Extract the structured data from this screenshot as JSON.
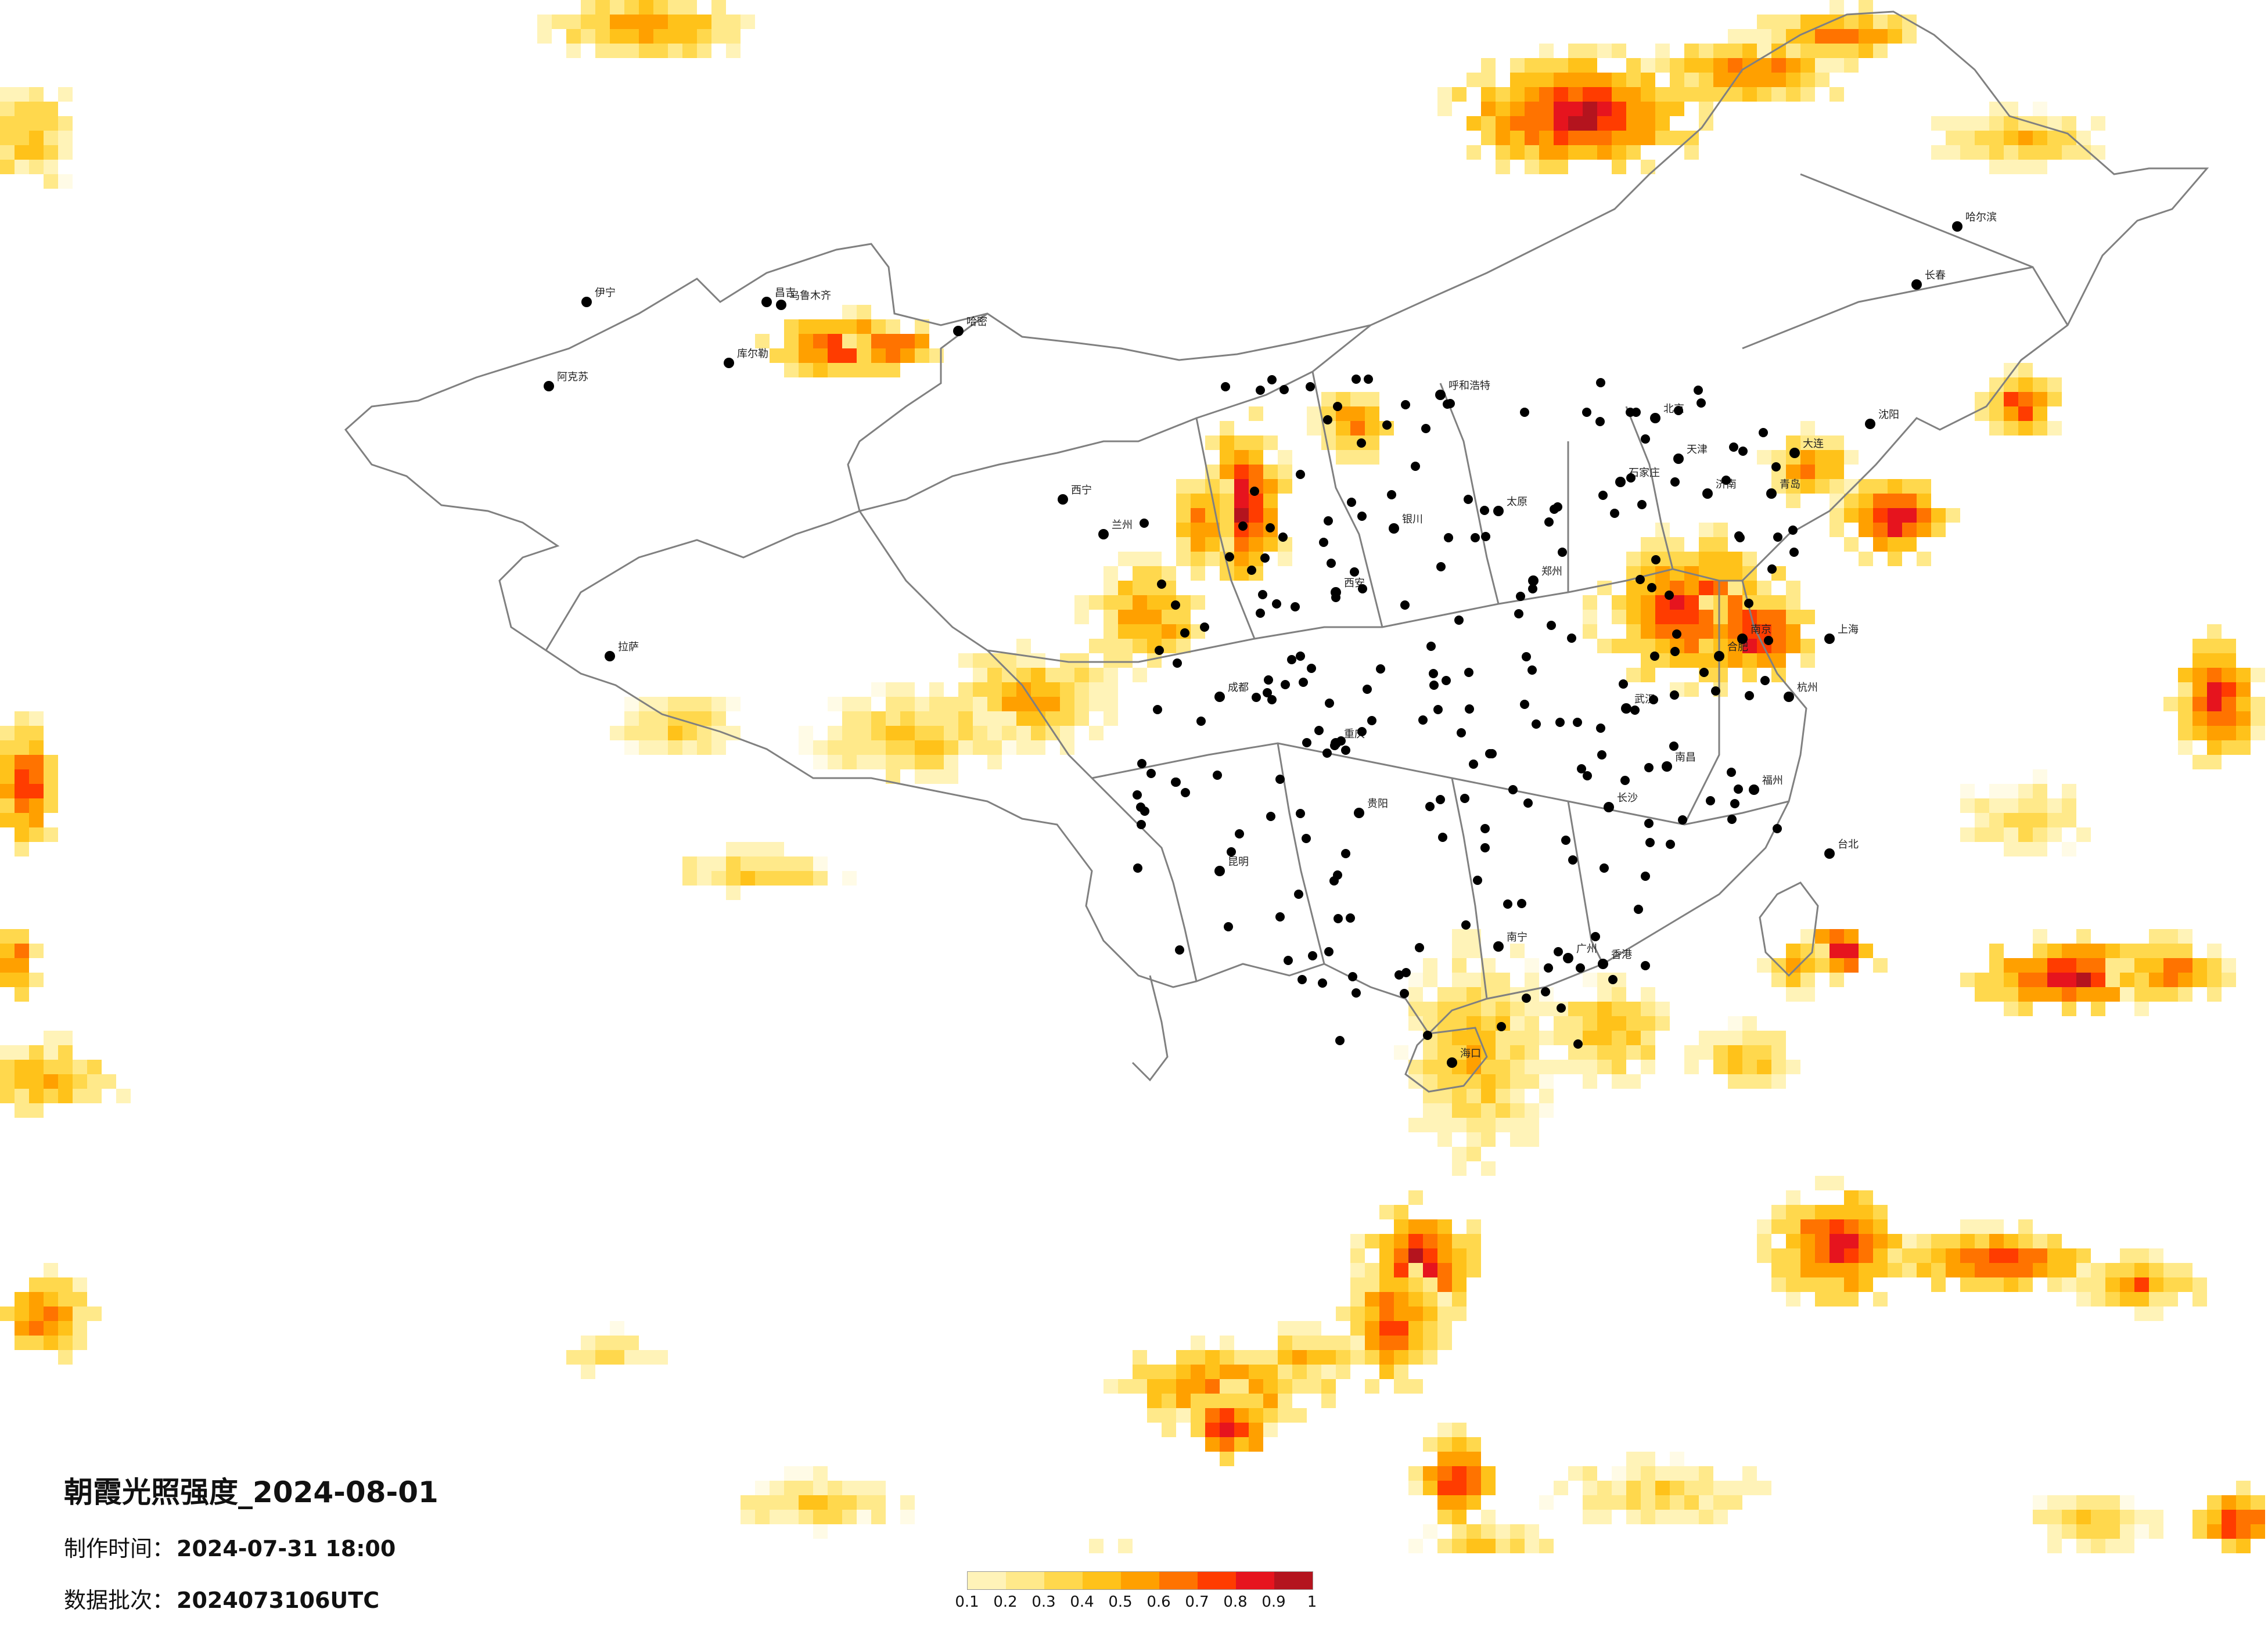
{
  "title": "朝霞光照强度_2024-08-01",
  "made_time": {
    "label": "制作时间：",
    "value": "2024-07-31 18:00"
  },
  "data_batch": {
    "label": "数据批次：",
    "value": "2024073106UTC"
  },
  "legend": {
    "ticks": [
      "0.1",
      "0.2",
      "0.3",
      "0.4",
      "0.5",
      "0.6",
      "0.7",
      "0.8",
      "0.9",
      "1"
    ],
    "colors": [
      "#fffbe6",
      "#fff3b8",
      "#ffe98a",
      "#ffd84d",
      "#ffc21a",
      "#ffa000",
      "#ff7300",
      "#ff3c00",
      "#e6141e",
      "#b4141e"
    ]
  },
  "cities": [
    "乌鲁木齐",
    "昌吉",
    "库尔勒",
    "阿克苏",
    "伊宁",
    "哈密",
    "北京",
    "天津",
    "石家庄",
    "太原",
    "郑州",
    "西安",
    "兰州",
    "西宁",
    "拉萨",
    "成都",
    "重庆",
    "贵阳",
    "昆明",
    "南宁",
    "广州",
    "长沙",
    "武汉",
    "南昌",
    "合肥",
    "南京",
    "上海",
    "杭州",
    "福州",
    "济南",
    "沈阳",
    "长春",
    "哈尔滨",
    "呼和浩特",
    "银川",
    "海口",
    "台北",
    "香港",
    "大连",
    "青岛"
  ]
}
